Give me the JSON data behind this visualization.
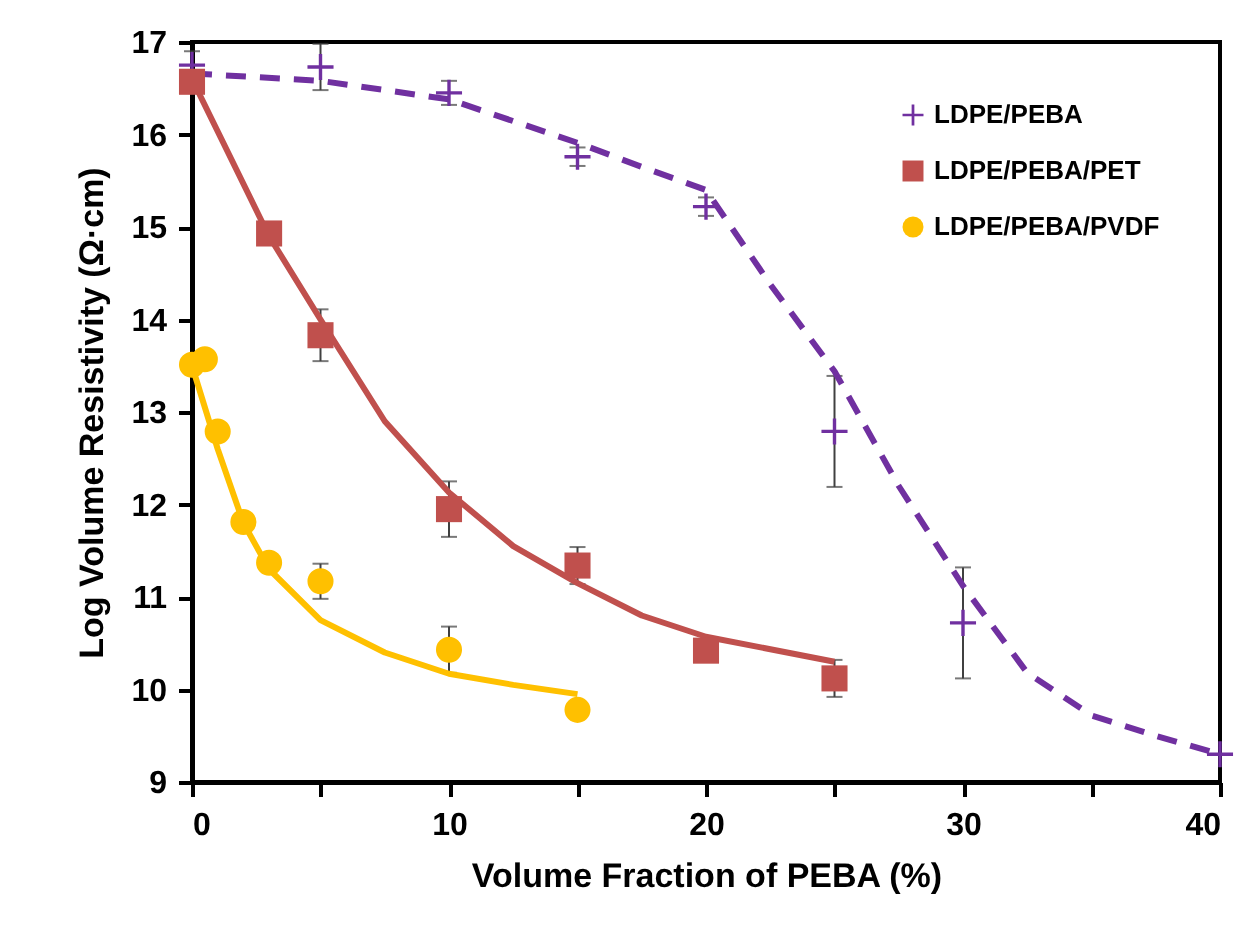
{
  "chart_data": {
    "type": "scatter",
    "xlabel": "Volume Fraction of PEBA (%)",
    "ylabel": "Log Volume Resistivity (Ω·cm)",
    "xlim": [
      0,
      40
    ],
    "ylim": [
      9,
      17
    ],
    "xticks": [
      0,
      {
        "value": 5,
        "label": null
      },
      10,
      {
        "value": 15,
        "label": null
      },
      20,
      {
        "value": 25,
        "label": null
      },
      30,
      {
        "value": 35,
        "label": null
      },
      40
    ],
    "yticks": [
      9,
      10,
      11,
      12,
      13,
      14,
      15,
      16,
      17
    ],
    "legend": "top right",
    "series": [
      {
        "name": "LDPE/PEBA",
        "marker": "cross",
        "color": "#7030a0",
        "x": [
          0,
          5,
          10,
          15,
          20,
          25,
          30,
          40
        ],
        "values": [
          16.75,
          16.73,
          16.45,
          15.76,
          15.22,
          12.79,
          10.72,
          9.3
        ],
        "errors": [
          0.15,
          0.25,
          0.13,
          0.1,
          0.1,
          0.6,
          0.6,
          null
        ]
      },
      {
        "name": "LDPE/PEBA/PET",
        "marker": "square",
        "color": "#c0504d",
        "x": [
          0,
          3,
          5,
          10,
          15,
          20,
          25
        ],
        "values": [
          16.57,
          14.93,
          13.83,
          11.95,
          11.34,
          10.42,
          10.12
        ],
        "errors": [
          null,
          null,
          0.28,
          0.3,
          0.2,
          null,
          0.2
        ]
      },
      {
        "name": "LDPE/PEBA/PVDF",
        "marker": "circle",
        "color": "#ffc000",
        "x": [
          0,
          0.5,
          1,
          2,
          3,
          5,
          10,
          15
        ],
        "values": [
          13.51,
          13.57,
          12.79,
          11.81,
          11.37,
          11.17,
          10.43,
          9.78
        ],
        "errors": [
          null,
          null,
          null,
          null,
          null,
          0.19,
          0.25,
          null
        ]
      },
      {
        "type": "line",
        "marker": "none",
        "line_style": "dashed",
        "color": "#7030a0",
        "x": [
          0,
          5,
          10,
          15,
          17.5,
          20,
          22.5,
          25,
          27.5,
          30,
          32.5,
          35,
          37.5,
          40
        ],
        "values": [
          16.66,
          16.58,
          16.38,
          15.91,
          15.65,
          15.4,
          14.38,
          13.44,
          12.2,
          11.12,
          10.18,
          9.72,
          9.5,
          9.3
        ]
      },
      {
        "type": "line",
        "marker": "none",
        "line_style": "solid",
        "color": "#c0504d",
        "x": [
          0,
          3,
          5,
          7.5,
          10,
          12.5,
          15,
          17.5,
          20,
          25
        ],
        "values": [
          16.6,
          14.9,
          14.0,
          12.9,
          12.13,
          11.55,
          11.15,
          10.8,
          10.57,
          10.3
        ]
      },
      {
        "type": "line",
        "marker": "none",
        "line_style": "solid",
        "color": "#ffc000",
        "x": [
          0,
          1,
          2,
          3,
          5,
          7.5,
          10,
          12.5,
          15
        ],
        "values": [
          13.5,
          12.6,
          11.8,
          11.3,
          10.75,
          10.4,
          10.17,
          10.05,
          9.95
        ]
      }
    ]
  }
}
